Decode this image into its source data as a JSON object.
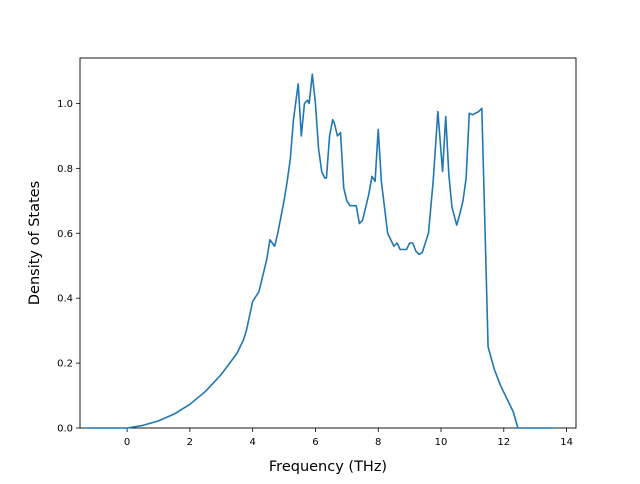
{
  "chart_data": {
    "type": "line",
    "title": "",
    "xlabel": "Frequency (THz)",
    "ylabel": "Density of States",
    "xlim": [
      -1.5,
      14.3
    ],
    "ylim": [
      0.0,
      1.14
    ],
    "xticks": [
      0,
      2,
      4,
      6,
      8,
      10,
      12,
      14
    ],
    "yticks": [
      0.0,
      0.2,
      0.4,
      0.6,
      0.8,
      1.0
    ],
    "xtick_labels": [
      "0",
      "2",
      "4",
      "6",
      "8",
      "10",
      "12",
      "14"
    ],
    "ytick_labels": [
      "0.0",
      "0.2",
      "0.4",
      "0.6",
      "0.8",
      "1.0"
    ],
    "grid": false,
    "legend": "none",
    "line_color": "#1f77b4",
    "series": [
      {
        "x": [
          -1.3,
          -0.5,
          0.0,
          0.5,
          1.0,
          1.5,
          2.0,
          2.5,
          3.0,
          3.5,
          3.7,
          3.8,
          4.0,
          4.2,
          4.4,
          4.45,
          4.55,
          4.7,
          4.8,
          5.0,
          5.1,
          5.2,
          5.3,
          5.45,
          5.55,
          5.65,
          5.75,
          5.8,
          5.9,
          6.0,
          6.1,
          6.2,
          6.3,
          6.35,
          6.45,
          6.55,
          6.6,
          6.7,
          6.8,
          6.9,
          7.0,
          7.1,
          7.3,
          7.4,
          7.5,
          7.6,
          7.7,
          7.8,
          7.9,
          8.0,
          8.1,
          8.3,
          8.5,
          8.6,
          8.7,
          8.9,
          9.0,
          9.1,
          9.2,
          9.3,
          9.4,
          9.6,
          9.75,
          9.9,
          10.05,
          10.15,
          10.25,
          10.35,
          10.5,
          10.6,
          10.7,
          10.8,
          10.9,
          11.0,
          11.2,
          11.3,
          11.4,
          11.5,
          11.7,
          11.9,
          12.1,
          12.3,
          12.45,
          13.6
        ],
        "y": [
          0.0,
          0.0,
          0.0,
          0.008,
          0.022,
          0.043,
          0.073,
          0.113,
          0.165,
          0.23,
          0.27,
          0.3,
          0.39,
          0.42,
          0.5,
          0.52,
          0.58,
          0.56,
          0.6,
          0.7,
          0.76,
          0.83,
          0.95,
          1.06,
          0.9,
          1.0,
          1.01,
          1.0,
          1.09,
          1.0,
          0.86,
          0.79,
          0.77,
          0.77,
          0.9,
          0.95,
          0.94,
          0.9,
          0.91,
          0.74,
          0.7,
          0.685,
          0.685,
          0.63,
          0.64,
          0.68,
          0.72,
          0.775,
          0.76,
          0.92,
          0.76,
          0.6,
          0.56,
          0.57,
          0.55,
          0.55,
          0.57,
          0.57,
          0.545,
          0.535,
          0.54,
          0.6,
          0.76,
          0.975,
          0.79,
          0.96,
          0.78,
          0.68,
          0.625,
          0.66,
          0.7,
          0.77,
          0.97,
          0.965,
          0.975,
          0.985,
          0.62,
          0.25,
          0.18,
          0.13,
          0.09,
          0.05,
          0.0,
          0.0
        ]
      }
    ]
  }
}
